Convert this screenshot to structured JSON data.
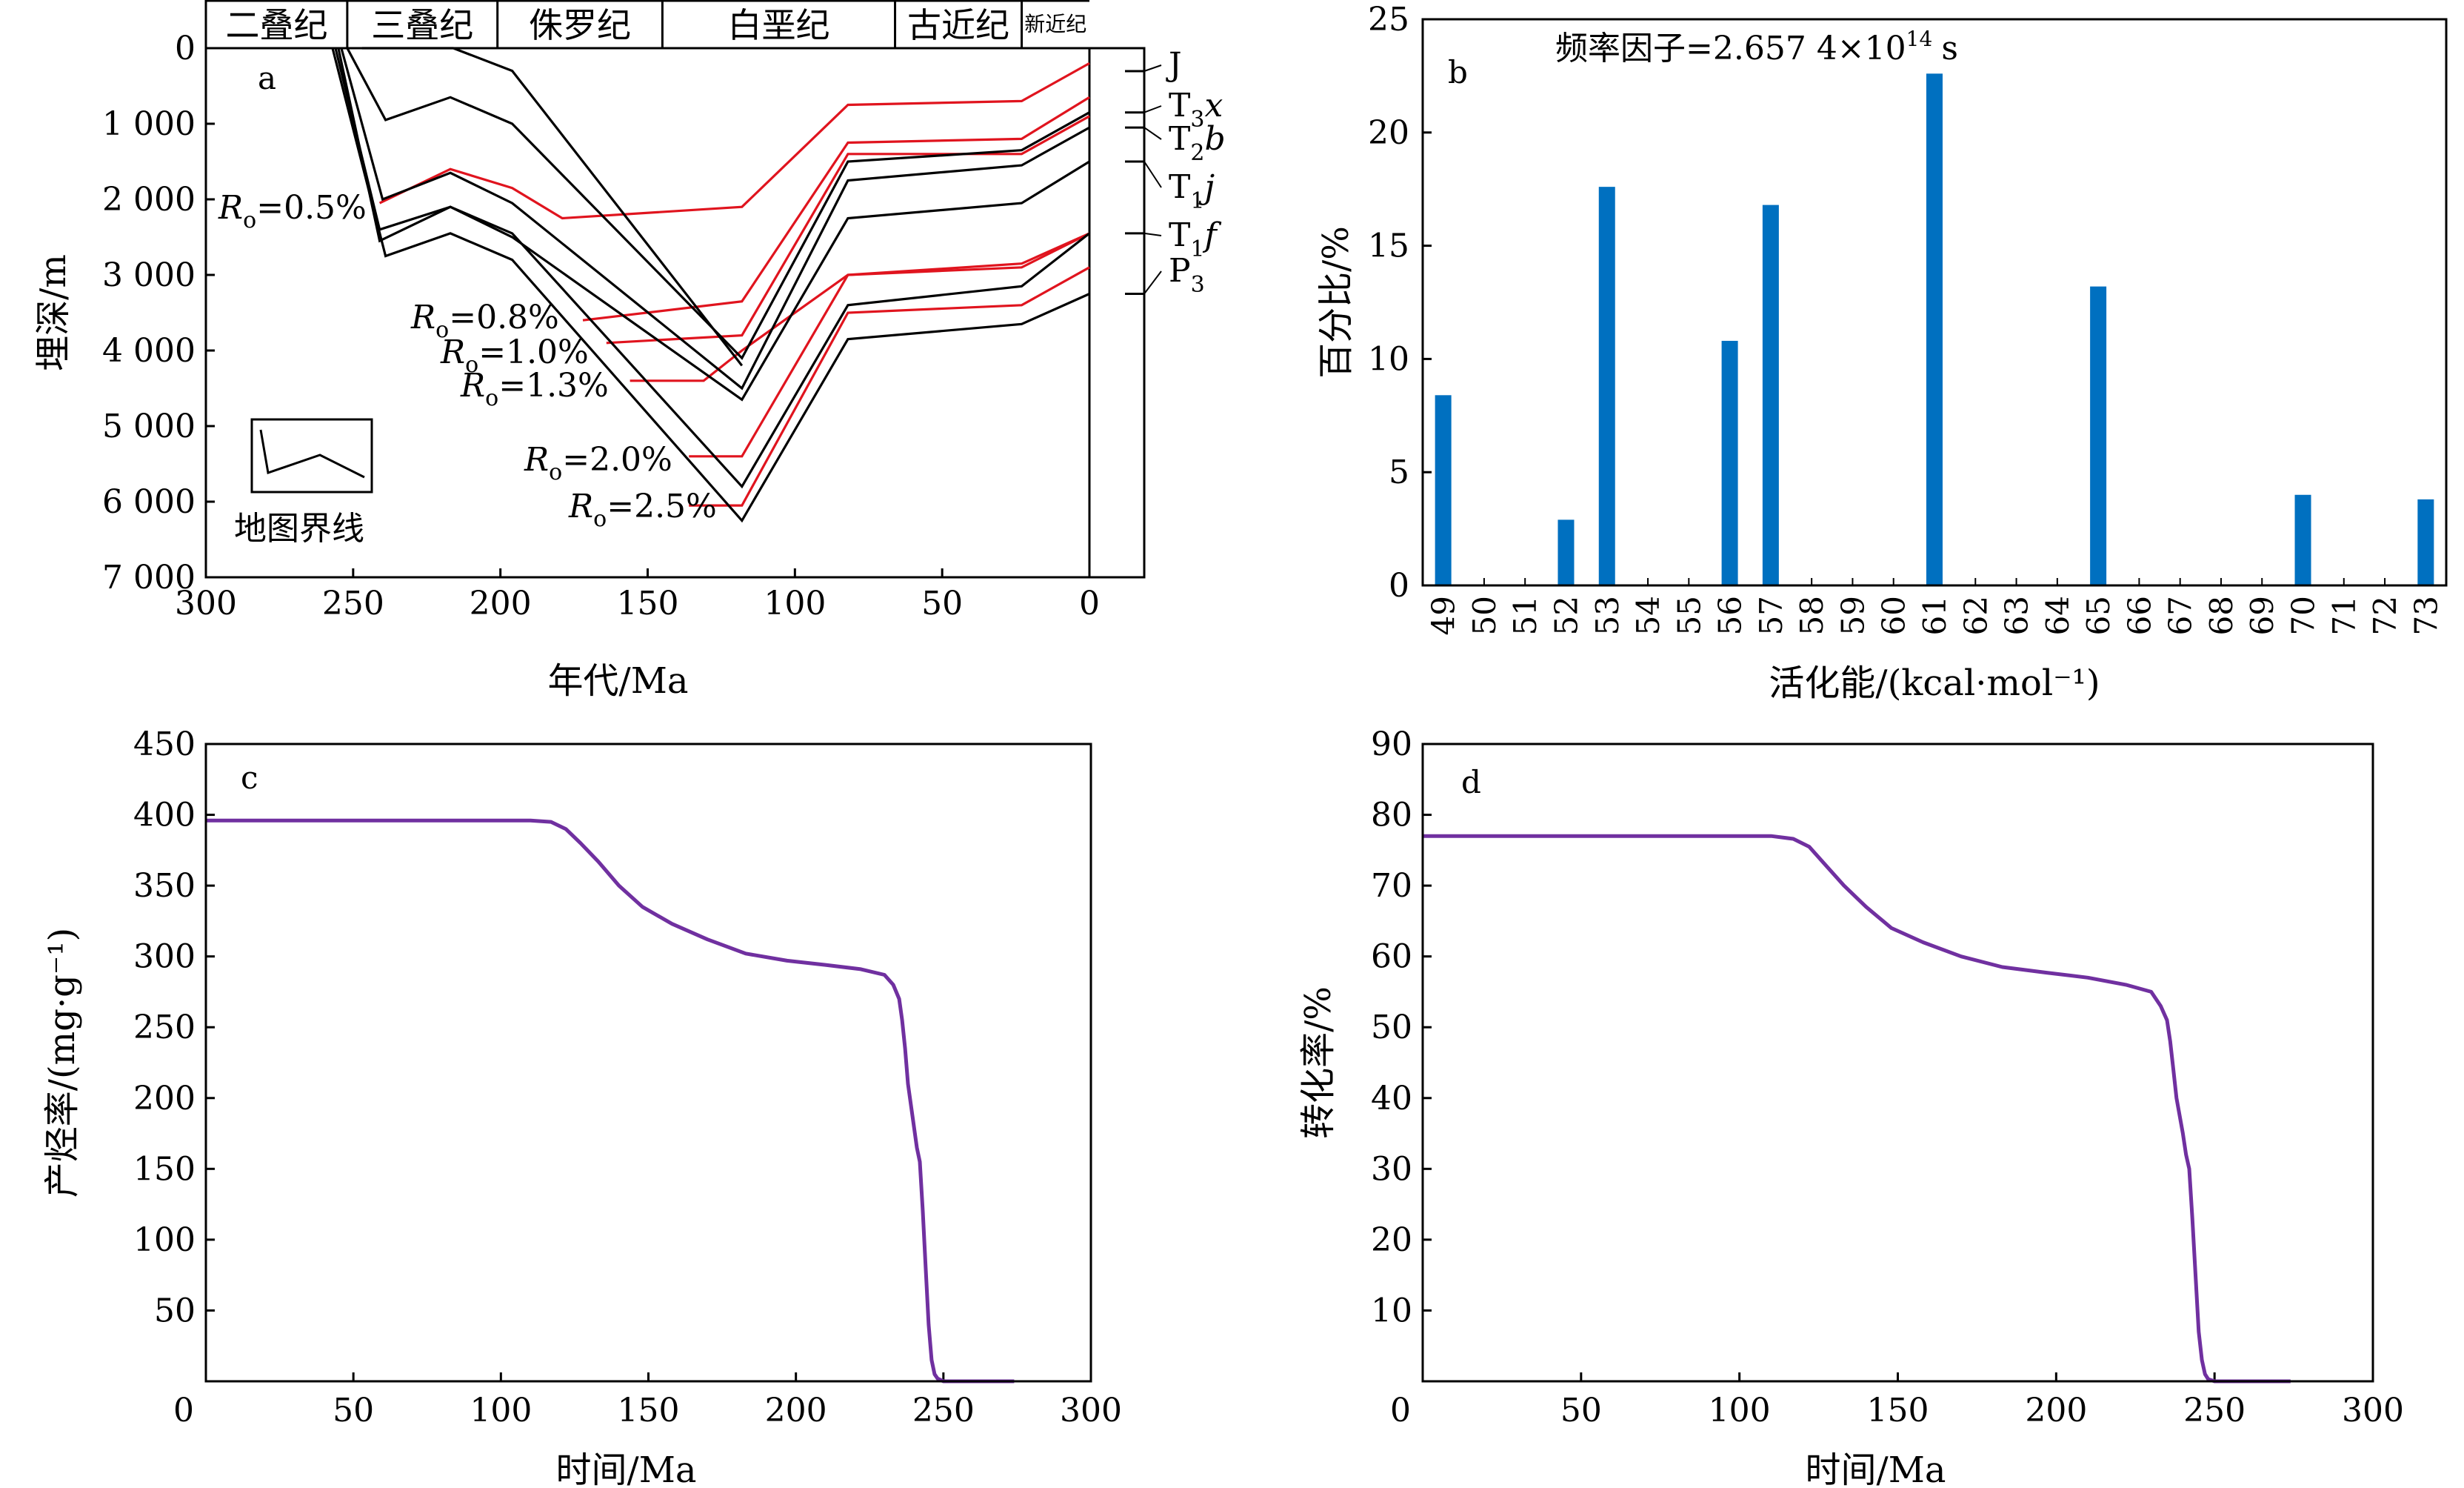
{
  "chart_data": [
    {
      "panel": "a",
      "type": "line",
      "xlabel": "年代/Ma",
      "ylabel": "埋深/m",
      "xlim": [
        300,
        0
      ],
      "ylim": [
        0,
        7000
      ],
      "xticks": [
        "300",
        "250",
        "200",
        "150",
        "100",
        "50",
        "0"
      ],
      "yticks": [
        "0",
        "1 000",
        "2 000",
        "3 000",
        "4 000",
        "5 000",
        "6 000",
        "7 000"
      ],
      "periods": [
        {
          "name": "二叠纪",
          "from": 300,
          "to": 252
        },
        {
          "name": "三叠纪",
          "from": 252,
          "to": 201
        },
        {
          "name": "侏罗纪",
          "from": 201,
          "to": 145
        },
        {
          "name": "白垩纪",
          "from": 145,
          "to": 66
        },
        {
          "name": "古近纪",
          "from": 66,
          "to": 23
        },
        {
          "name": "新近纪",
          "from": 23,
          "to": 0
        }
      ],
      "legend": {
        "text": "地图界线"
      },
      "strata": [
        {
          "label": "J",
          "sub": "",
          "ital": "",
          "points": [
            [
              247,
              0
            ],
            [
              216,
              0
            ],
            [
              196,
              300
            ],
            [
              118,
              4200
            ]
          ]
        },
        {
          "label": "T",
          "sub": "3",
          "ital": "x",
          "points": [
            [
              252,
              0
            ],
            [
              239,
              950
            ],
            [
              217,
              650
            ],
            [
              196,
              1000
            ],
            [
              118,
              4100
            ],
            [
              82,
              1500
            ],
            [
              23,
              1350
            ],
            [
              0,
              850
            ]
          ]
        },
        {
          "label": "T",
          "sub": "2",
          "ital": "b",
          "points": [
            [
              254,
              0
            ],
            [
              240,
              2000
            ],
            [
              217,
              1650
            ],
            [
              196,
              2050
            ],
            [
              118,
              4500
            ],
            [
              82,
              1750
            ],
            [
              23,
              1550
            ],
            [
              0,
              1050
            ]
          ]
        },
        {
          "label": "T",
          "sub": "1",
          "ital": "j",
          "points": [
            [
              255,
              0
            ],
            [
              241,
              2550
            ],
            [
              217,
              2100
            ],
            [
              196,
              2500
            ],
            [
              118,
              4650
            ],
            [
              82,
              2250
            ],
            [
              23,
              2050
            ],
            [
              0,
              1500
            ]
          ]
        },
        {
          "label": "T",
          "sub": "1",
          "ital": "f",
          "points": [
            [
              256,
              0
            ],
            [
              241,
              2400
            ],
            [
              217,
              2100
            ],
            [
              196,
              2450
            ],
            [
              118,
              5800
            ],
            [
              82,
              3400
            ],
            [
              23,
              3150
            ],
            [
              0,
              2450
            ]
          ]
        },
        {
          "label": "P",
          "sub": "3",
          "ital": "",
          "points": [
            [
              257,
              0
            ],
            [
              239,
              2750
            ],
            [
              217,
              2450
            ],
            [
              196,
              2800
            ],
            [
              118,
              6250
            ],
            [
              82,
              3850
            ],
            [
              23,
              3650
            ],
            [
              0,
              3250
            ]
          ]
        }
      ],
      "ro_lines": [
        {
          "label": "0.5%",
          "points": [
            [
              241,
              2050
            ],
            [
              217,
              1600
            ],
            [
              196,
              1850
            ],
            [
              179,
              2250
            ],
            [
              118,
              2100
            ],
            [
              82,
              750
            ],
            [
              23,
              700
            ],
            [
              0,
              200
            ]
          ]
        },
        {
          "label": "0.8%",
          "points": [
            [
              172,
              3600
            ],
            [
              118,
              3350
            ],
            [
              82,
              1250
            ],
            [
              23,
              1200
            ],
            [
              0,
              650
            ]
          ]
        },
        {
          "label": "1.0%",
          "points": [
            [
              164,
              3900
            ],
            [
              118,
              3800
            ],
            [
              82,
              1400
            ],
            [
              23,
              1400
            ],
            [
              0,
              900
            ]
          ]
        },
        {
          "label": "1.3%",
          "points": [
            [
              156,
              4400
            ],
            [
              131,
              4400
            ],
            [
              118,
              4000
            ],
            [
              82,
              3000
            ],
            [
              23,
              2850
            ],
            [
              0,
              2450
            ]
          ]
        },
        {
          "label": "2.0%",
          "points": [
            [
              136,
              5400
            ],
            [
              118,
              5400
            ],
            [
              82,
              3000
            ],
            [
              23,
              2900
            ],
            [
              0,
              2450
            ]
          ]
        },
        {
          "label": "2.5%",
          "points": [
            [
              136,
              6050
            ],
            [
              118,
              6050
            ],
            [
              82,
              3500
            ],
            [
              23,
              3400
            ],
            [
              0,
              2900
            ]
          ]
        }
      ]
    },
    {
      "panel": "b",
      "type": "bar",
      "title": "频率因子=2.657 4×10",
      "title_sup": "14",
      "title_unit": "s",
      "xlabel": "活化能/(kcal·mol⁻¹)",
      "ylabel": "百分比/%",
      "ylim": [
        0,
        25
      ],
      "yticks": [
        "0",
        "5",
        "10",
        "15",
        "20",
        "25"
      ],
      "categories": [
        "49",
        "50",
        "51",
        "52",
        "53",
        "54",
        "55",
        "56",
        "57",
        "58",
        "59",
        "60",
        "61",
        "62",
        "63",
        "64",
        "65",
        "66",
        "67",
        "68",
        "69",
        "70",
        "71",
        "72",
        "73"
      ],
      "values": [
        8.4,
        0,
        0,
        2.9,
        17.6,
        0,
        0,
        10.8,
        16.8,
        0,
        0,
        0,
        22.6,
        0,
        0,
        0,
        13.2,
        0,
        0,
        0,
        0,
        4.0,
        0,
        0,
        3.8
      ],
      "color": "#0070c0"
    },
    {
      "panel": "c",
      "type": "line",
      "xlabel": "时间/Ma",
      "ylabel": "产烃率/(mg·g⁻¹)",
      "xlim": [
        0,
        300
      ],
      "ylim": [
        0,
        450
      ],
      "xticks": [
        "0",
        "50",
        "100",
        "150",
        "200",
        "250",
        "300"
      ],
      "yticks": [
        "50",
        "100",
        "150",
        "200",
        "250",
        "300",
        "350",
        "400",
        "450"
      ],
      "color": "#7030a0",
      "x": [
        0,
        100,
        110,
        117,
        122,
        127,
        133,
        140,
        148,
        158,
        170,
        183,
        197,
        210,
        222,
        230,
        233,
        235,
        236,
        237,
        238,
        240,
        241,
        242,
        243,
        244,
        245,
        246,
        247,
        248,
        250,
        255,
        274
      ],
      "y": [
        396,
        396,
        396,
        395,
        390,
        380,
        367,
        350,
        335,
        323,
        312,
        302,
        297,
        294,
        291,
        287,
        280,
        270,
        255,
        235,
        210,
        180,
        165,
        155,
        120,
        80,
        40,
        15,
        5,
        2,
        0,
        0,
        0
      ]
    },
    {
      "panel": "d",
      "type": "line",
      "xlabel": "时间/Ma",
      "ylabel": "转化率/%",
      "xlim": [
        0,
        300
      ],
      "ylim": [
        0,
        90
      ],
      "xticks": [
        "0",
        "50",
        "100",
        "150",
        "200",
        "250",
        "300"
      ],
      "yticks": [
        "10",
        "20",
        "30",
        "40",
        "50",
        "60",
        "70",
        "80",
        "90"
      ],
      "color": "#7030a0",
      "x": [
        0,
        100,
        110,
        117,
        122,
        127,
        133,
        140,
        148,
        158,
        170,
        183,
        197,
        210,
        222,
        230,
        233,
        235,
        236,
        237,
        238,
        240,
        241,
        242,
        243,
        244,
        245,
        246,
        247,
        248,
        250,
        255,
        274
      ],
      "y": [
        77,
        77,
        77,
        76.6,
        75.5,
        73,
        70,
        67,
        64,
        62,
        60,
        58.5,
        57.7,
        57,
        56,
        55,
        53,
        51,
        48,
        44,
        40,
        35,
        32,
        30,
        23,
        15,
        7,
        3,
        1,
        0.3,
        0,
        0,
        0
      ]
    }
  ]
}
